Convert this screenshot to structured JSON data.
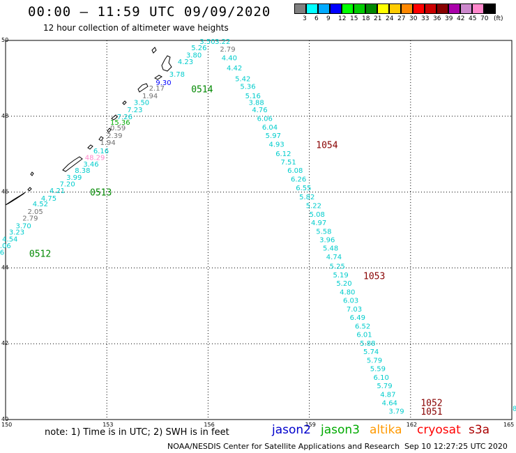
{
  "header": {
    "title": "00:00 – 11:59 UTC 09/09/2020",
    "subtitle": "12 hour collection of altimeter wave heights"
  },
  "legend": {
    "unit_label": "(ft)",
    "colors": [
      "#808080",
      "#00ffff",
      "#00aaff",
      "#0000ff",
      "#00ff00",
      "#00cc00",
      "#008800",
      "#ffff00",
      "#ffcc00",
      "#ff8800",
      "#ff0000",
      "#cc0000",
      "#880000",
      "#aa00aa",
      "#cc88cc",
      "#ff88cc",
      "#000000"
    ],
    "ticks": [
      "3",
      "6",
      "9",
      "12",
      "15",
      "18",
      "21",
      "24",
      "27",
      "30",
      "33",
      "36",
      "39",
      "42",
      "45",
      "70"
    ]
  },
  "axes": {
    "lat_ticks": [
      "50",
      "48",
      "46",
      "44",
      "42",
      "40"
    ],
    "lon_ticks": [
      "150",
      "153",
      "156",
      "159",
      "162",
      "165"
    ]
  },
  "readings": [
    {
      "text": "3.50",
      "lon": 155.75,
      "lat": 49.98,
      "color": "#00cccc"
    },
    {
      "text": "3.22",
      "lon": 156.2,
      "lat": 49.98,
      "color": "#00cccc"
    },
    {
      "text": "5.26",
      "lon": 155.5,
      "lat": 49.82,
      "color": "#00cccc"
    },
    {
      "text": "2.79",
      "lon": 156.35,
      "lat": 49.78,
      "color": "#707070"
    },
    {
      "text": "3.80",
      "lon": 155.35,
      "lat": 49.62,
      "color": "#00cccc"
    },
    {
      "text": "4.40",
      "lon": 156.4,
      "lat": 49.55,
      "color": "#00cccc"
    },
    {
      "text": "4.23",
      "lon": 155.1,
      "lat": 49.45,
      "color": "#00cccc"
    },
    {
      "text": "4.42",
      "lon": 156.55,
      "lat": 49.28,
      "color": "#00cccc"
    },
    {
      "text": "3.78",
      "lon": 154.85,
      "lat": 49.12,
      "color": "#00cccc"
    },
    {
      "text": "5.42",
      "lon": 156.8,
      "lat": 49.0,
      "color": "#00cccc"
    },
    {
      "text": "9.30",
      "lon": 154.45,
      "lat": 48.9,
      "color": "#0000ff"
    },
    {
      "text": "5.36",
      "lon": 156.95,
      "lat": 48.8,
      "color": "#00cccc"
    },
    {
      "text": "2.17",
      "lon": 154.25,
      "lat": 48.75,
      "color": "#707070"
    },
    {
      "text": "5.16",
      "lon": 157.1,
      "lat": 48.55,
      "color": "#00cccc"
    },
    {
      "text": "1.94",
      "lon": 154.05,
      "lat": 48.55,
      "color": "#707070"
    },
    {
      "text": "3.88",
      "lon": 157.2,
      "lat": 48.37,
      "color": "#00cccc"
    },
    {
      "text": "3.50",
      "lon": 153.8,
      "lat": 48.37,
      "color": "#00cccc"
    },
    {
      "text": "4.76",
      "lon": 157.3,
      "lat": 48.18,
      "color": "#00cccc"
    },
    {
      "text": "7.23",
      "lon": 153.6,
      "lat": 48.18,
      "color": "#00cccc"
    },
    {
      "text": "7.26",
      "lon": 153.3,
      "lat": 48.0,
      "color": "#00cccc"
    },
    {
      "text": "6.06",
      "lon": 157.45,
      "lat": 47.95,
      "color": "#00cccc"
    },
    {
      "text": "15.36",
      "lon": 153.1,
      "lat": 47.85,
      "color": "#00aa00"
    },
    {
      "text": "6.04",
      "lon": 157.6,
      "lat": 47.72,
      "color": "#00cccc"
    },
    {
      "text": "0.59",
      "lon": 153.1,
      "lat": 47.7,
      "color": "#707070"
    },
    {
      "text": "5.97",
      "lon": 157.7,
      "lat": 47.5,
      "color": "#00cccc"
    },
    {
      "text": "2.39",
      "lon": 153.0,
      "lat": 47.5,
      "color": "#707070"
    },
    {
      "text": "1.94",
      "lon": 152.8,
      "lat": 47.32,
      "color": "#707070"
    },
    {
      "text": "4.93",
      "lon": 157.8,
      "lat": 47.27,
      "color": "#00cccc"
    },
    {
      "text": "6.12",
      "lon": 158.0,
      "lat": 47.02,
      "color": "#00cccc"
    },
    {
      "text": "6.16",
      "lon": 152.6,
      "lat": 47.1,
      "color": "#00cccc"
    },
    {
      "text": "48.29",
      "lon": 152.35,
      "lat": 46.92,
      "color": "#ff88cc"
    },
    {
      "text": "7.51",
      "lon": 158.15,
      "lat": 46.8,
      "color": "#00cccc"
    },
    {
      "text": "3.46",
      "lon": 152.3,
      "lat": 46.75,
      "color": "#00cccc"
    },
    {
      "text": "6.08",
      "lon": 158.35,
      "lat": 46.58,
      "color": "#00cccc"
    },
    {
      "text": "8.38",
      "lon": 152.05,
      "lat": 46.58,
      "color": "#00cccc"
    },
    {
      "text": "3.99",
      "lon": 151.8,
      "lat": 46.4,
      "color": "#00cccc"
    },
    {
      "text": "6.26",
      "lon": 158.45,
      "lat": 46.35,
      "color": "#00cccc"
    },
    {
      "text": "7.20",
      "lon": 151.6,
      "lat": 46.22,
      "color": "#00cccc"
    },
    {
      "text": "6.55",
      "lon": 158.6,
      "lat": 46.12,
      "color": "#00cccc"
    },
    {
      "text": "4.21",
      "lon": 151.3,
      "lat": 46.05,
      "color": "#00cccc"
    },
    {
      "text": "4.75",
      "lon": 151.05,
      "lat": 45.85,
      "color": "#00cccc"
    },
    {
      "text": "5.82",
      "lon": 158.7,
      "lat": 45.88,
      "color": "#00cccc"
    },
    {
      "text": "4.52",
      "lon": 150.8,
      "lat": 45.7,
      "color": "#00cccc"
    },
    {
      "text": "5.22",
      "lon": 158.9,
      "lat": 45.65,
      "color": "#00cccc"
    },
    {
      "text": "2.05",
      "lon": 150.65,
      "lat": 45.5,
      "color": "#707070"
    },
    {
      "text": "5.08",
      "lon": 159.0,
      "lat": 45.42,
      "color": "#00cccc"
    },
    {
      "text": "2.79",
      "lon": 150.5,
      "lat": 45.32,
      "color": "#707070"
    },
    {
      "text": "4.97",
      "lon": 159.05,
      "lat": 45.2,
      "color": "#00cccc"
    },
    {
      "text": "3.70",
      "lon": 150.3,
      "lat": 45.12,
      "color": "#00cccc"
    },
    {
      "text": "3.23",
      "lon": 150.1,
      "lat": 44.95,
      "color": "#00cccc"
    },
    {
      "text": "5.58",
      "lon": 159.2,
      "lat": 44.97,
      "color": "#00cccc"
    },
    {
      "text": "4.54",
      "lon": 149.9,
      "lat": 44.77,
      "color": "#00cccc"
    },
    {
      "text": "3.96",
      "lon": 159.3,
      "lat": 44.75,
      "color": "#00cccc"
    },
    {
      "text": "4.06",
      "lon": 149.7,
      "lat": 44.6,
      "color": "#00cccc"
    },
    {
      "text": "5.48",
      "lon": 159.4,
      "lat": 44.53,
      "color": "#00cccc"
    },
    {
      "text": "4.36",
      "lon": 149.5,
      "lat": 44.42,
      "color": "#00cccc"
    },
    {
      "text": "4.74",
      "lon": 159.5,
      "lat": 44.3,
      "color": "#00cccc"
    },
    {
      "text": "5.25",
      "lon": 159.6,
      "lat": 44.05,
      "color": "#00cccc"
    },
    {
      "text": "5.19",
      "lon": 159.7,
      "lat": 43.82,
      "color": "#00cccc"
    },
    {
      "text": "5.20",
      "lon": 159.8,
      "lat": 43.6,
      "color": "#00cccc"
    },
    {
      "text": "4.80",
      "lon": 159.9,
      "lat": 43.37,
      "color": "#00cccc"
    },
    {
      "text": "6.03",
      "lon": 160.0,
      "lat": 43.15,
      "color": "#00cccc"
    },
    {
      "text": "7.03",
      "lon": 160.1,
      "lat": 42.92,
      "color": "#00cccc"
    },
    {
      "text": "6.49",
      "lon": 160.2,
      "lat": 42.7,
      "color": "#00cccc"
    },
    {
      "text": "6.52",
      "lon": 160.35,
      "lat": 42.47,
      "color": "#00cccc"
    },
    {
      "text": "6.01",
      "lon": 160.4,
      "lat": 42.25,
      "color": "#00cccc"
    },
    {
      "text": "5.88",
      "lon": 160.5,
      "lat": 42.02,
      "color": "#00cccc"
    },
    {
      "text": "5.74",
      "lon": 160.6,
      "lat": 41.8,
      "color": "#00cccc"
    },
    {
      "text": "5.79",
      "lon": 160.7,
      "lat": 41.57,
      "color": "#00cccc"
    },
    {
      "text": "5.59",
      "lon": 160.8,
      "lat": 41.35,
      "color": "#00cccc"
    },
    {
      "text": "6.10",
      "lon": 160.9,
      "lat": 41.12,
      "color": "#00cccc"
    },
    {
      "text": "5.79",
      "lon": 161.0,
      "lat": 40.9,
      "color": "#00cccc"
    },
    {
      "text": "4.87",
      "lon": 161.1,
      "lat": 40.67,
      "color": "#00cccc"
    },
    {
      "text": "4.64",
      "lon": 161.15,
      "lat": 40.45,
      "color": "#00cccc"
    },
    {
      "text": "3.79",
      "lon": 161.35,
      "lat": 40.23,
      "color": "#00cccc"
    }
  ],
  "pass_labels": [
    {
      "text": "0514",
      "lon": 155.5,
      "lat": 48.72,
      "color": "#008800"
    },
    {
      "text": "0513",
      "lon": 152.5,
      "lat": 46.0,
      "color": "#008800"
    },
    {
      "text": "0512",
      "lon": 150.7,
      "lat": 44.38,
      "color": "#008800"
    },
    {
      "text": "1054",
      "lon": 159.2,
      "lat": 47.25,
      "color": "#880000"
    },
    {
      "text": "1053",
      "lon": 160.6,
      "lat": 43.8,
      "color": "#880000"
    },
    {
      "text": "1052",
      "lon": 162.3,
      "lat": 40.45,
      "color": "#880000"
    },
    {
      "text": "1051",
      "lon": 162.3,
      "lat": 40.22,
      "color": "#880000"
    }
  ],
  "edge_label": {
    "text": "8",
    "lon": 165.1,
    "lat": 40.3,
    "color": "#00cccc"
  },
  "footer": {
    "note": "note:  1) Time is in UTC;  2) SWH is in feet",
    "satellites": [
      {
        "name": "jason2",
        "color": "#0000cc"
      },
      {
        "name": "jason3",
        "color": "#00aa00"
      },
      {
        "name": "altika",
        "color": "#ff9900"
      },
      {
        "name": "cryosat",
        "color": "#ff0000"
      },
      {
        "name": "s3a",
        "color": "#aa0000"
      }
    ],
    "credit": "NOAA/NESDIS Center for Satellite Applications and Research",
    "timestamp": "Sep 10 12:27:25 UTC 2020"
  }
}
